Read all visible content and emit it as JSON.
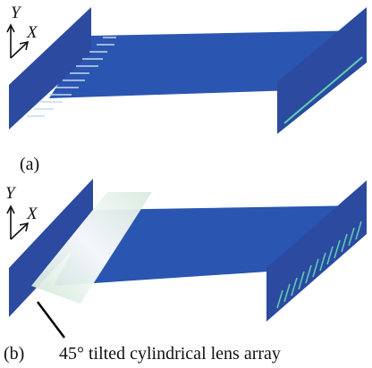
{
  "panels": [
    {
      "label": "(a)",
      "axes": {
        "y": "Y",
        "x": "X"
      }
    },
    {
      "label": "(b)",
      "axes": {
        "y": "Y",
        "x": "X"
      },
      "annotation": "45° tilted cylindrical lens array"
    }
  ]
}
